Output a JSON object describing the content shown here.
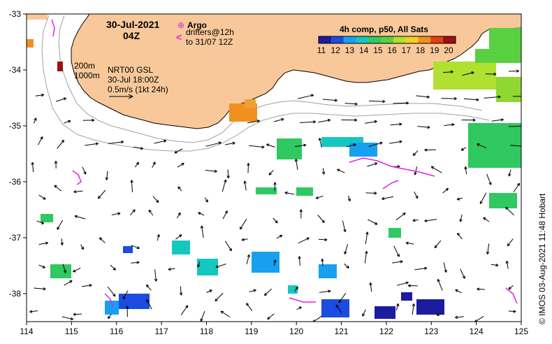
{
  "header": {
    "date": "30-Jul-2021",
    "time": "04Z"
  },
  "legend_argo": {
    "symbol": "⊕",
    "label": "Argo",
    "drifter_symbol": "<",
    "drifters_label": "drifters@12h",
    "drifters_until": "to 31/07 12Z"
  },
  "colorbar": {
    "title": "4h comp, p50, All Sats",
    "ticks": [
      "11",
      "12",
      "13",
      "14",
      "15",
      "16",
      "17",
      "18",
      "19",
      "20"
    ],
    "colors": [
      "#1c1ca0",
      "#1c4ce0",
      "#18a0f0",
      "#14c8c0",
      "#30c860",
      "#58d040",
      "#b0e030",
      "#f0d020",
      "#f09020",
      "#e04010",
      "#a01010"
    ]
  },
  "annotations": {
    "depth_200": "200m",
    "depth_1000": "1000m",
    "product": "NRT00 GSL",
    "valid": "30-Jul 18:00Z",
    "scale": "0.5m/s (1kt 24h)"
  },
  "axes": {
    "x_ticks": [
      "114",
      "115",
      "116",
      "117",
      "118",
      "119",
      "120",
      "121",
      "122",
      "123",
      "124",
      "125"
    ],
    "y_ticks": [
      "-33",
      "-34",
      "-35",
      "-36",
      "-37",
      "-38"
    ]
  },
  "credit": "© IMOS 03-Aug-2021 11:48 Hobart",
  "colors": {
    "land": "#f8c89a",
    "coast": "#000000",
    "isobath": "#a0a0a0",
    "drifter": "#e020e0"
  }
}
